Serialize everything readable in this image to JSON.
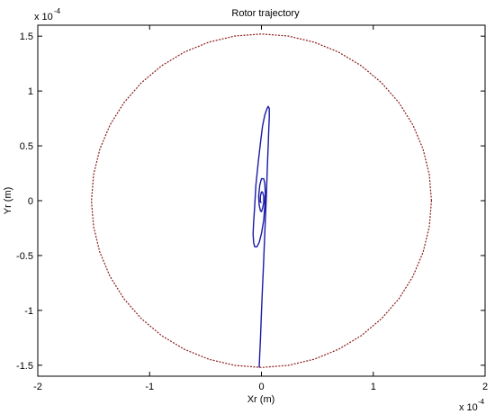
{
  "chart_data": {
    "type": "line",
    "title": "Rotor trajectory",
    "xlabel": "Xr (m)",
    "ylabel": "Yr (m)",
    "x_multiplier": "x 10",
    "y_multiplier": "x 10",
    "exponent": "-4",
    "xlim": [
      -2,
      2
    ],
    "ylim": [
      -1.6,
      1.6
    ],
    "xticks": [
      "-2",
      "-1",
      "0",
      "1",
      "2"
    ],
    "yticks": [
      "1.5",
      "1",
      "0.5",
      "0",
      "-0.5",
      "-1",
      "-1.5"
    ],
    "tick_values_x": [
      -2,
      -1,
      0,
      1,
      2
    ],
    "tick_values_y": [
      1.5,
      1,
      0.5,
      0,
      -0.5,
      -1,
      -1.5
    ],
    "grid": false,
    "series": [
      {
        "style": "dotted",
        "color": "#8b1a1a",
        "shape": "circle-polygon",
        "center": [
          0,
          0
        ],
        "radius": 1.52,
        "points_count": 40
      },
      {
        "style": "solid",
        "color": "#1a1aa8",
        "x": [
          -0.02,
          -0.015,
          -0.01,
          -0.005,
          0.0,
          0.005,
          0.01,
          0.015,
          0.02,
          0.025,
          0.03,
          0.035,
          0.04,
          0.045,
          0.05,
          0.055,
          0.06,
          0.065,
          0.07,
          0.07,
          0.06,
          0.05,
          0.03,
          0.01,
          -0.01,
          -0.03,
          -0.05,
          -0.06,
          -0.07,
          -0.075,
          -0.07,
          -0.06,
          -0.04,
          -0.02,
          0.0,
          0.02,
          0.03,
          0.035,
          0.03,
          0.02,
          0.0,
          -0.015,
          -0.025,
          -0.02,
          -0.01,
          0.0,
          0.01,
          0.02,
          0.02,
          0.01,
          0.0,
          -0.01,
          -0.01,
          0.0
        ],
        "y": [
          -1.52,
          -1.4,
          -1.28,
          -1.15,
          -1.02,
          -0.9,
          -0.78,
          -0.66,
          -0.54,
          -0.42,
          -0.3,
          -0.18,
          -0.05,
          0.08,
          0.22,
          0.36,
          0.5,
          0.64,
          0.76,
          0.84,
          0.86,
          0.84,
          0.78,
          0.68,
          0.52,
          0.34,
          0.14,
          -0.05,
          -0.2,
          -0.3,
          -0.38,
          -0.42,
          -0.42,
          -0.38,
          -0.3,
          -0.18,
          -0.05,
          0.07,
          0.16,
          0.2,
          0.2,
          0.14,
          0.04,
          -0.04,
          -0.09,
          -0.1,
          -0.07,
          -0.02,
          0.04,
          0.08,
          0.08,
          0.04,
          -0.01,
          -0.02
        ]
      }
    ]
  }
}
